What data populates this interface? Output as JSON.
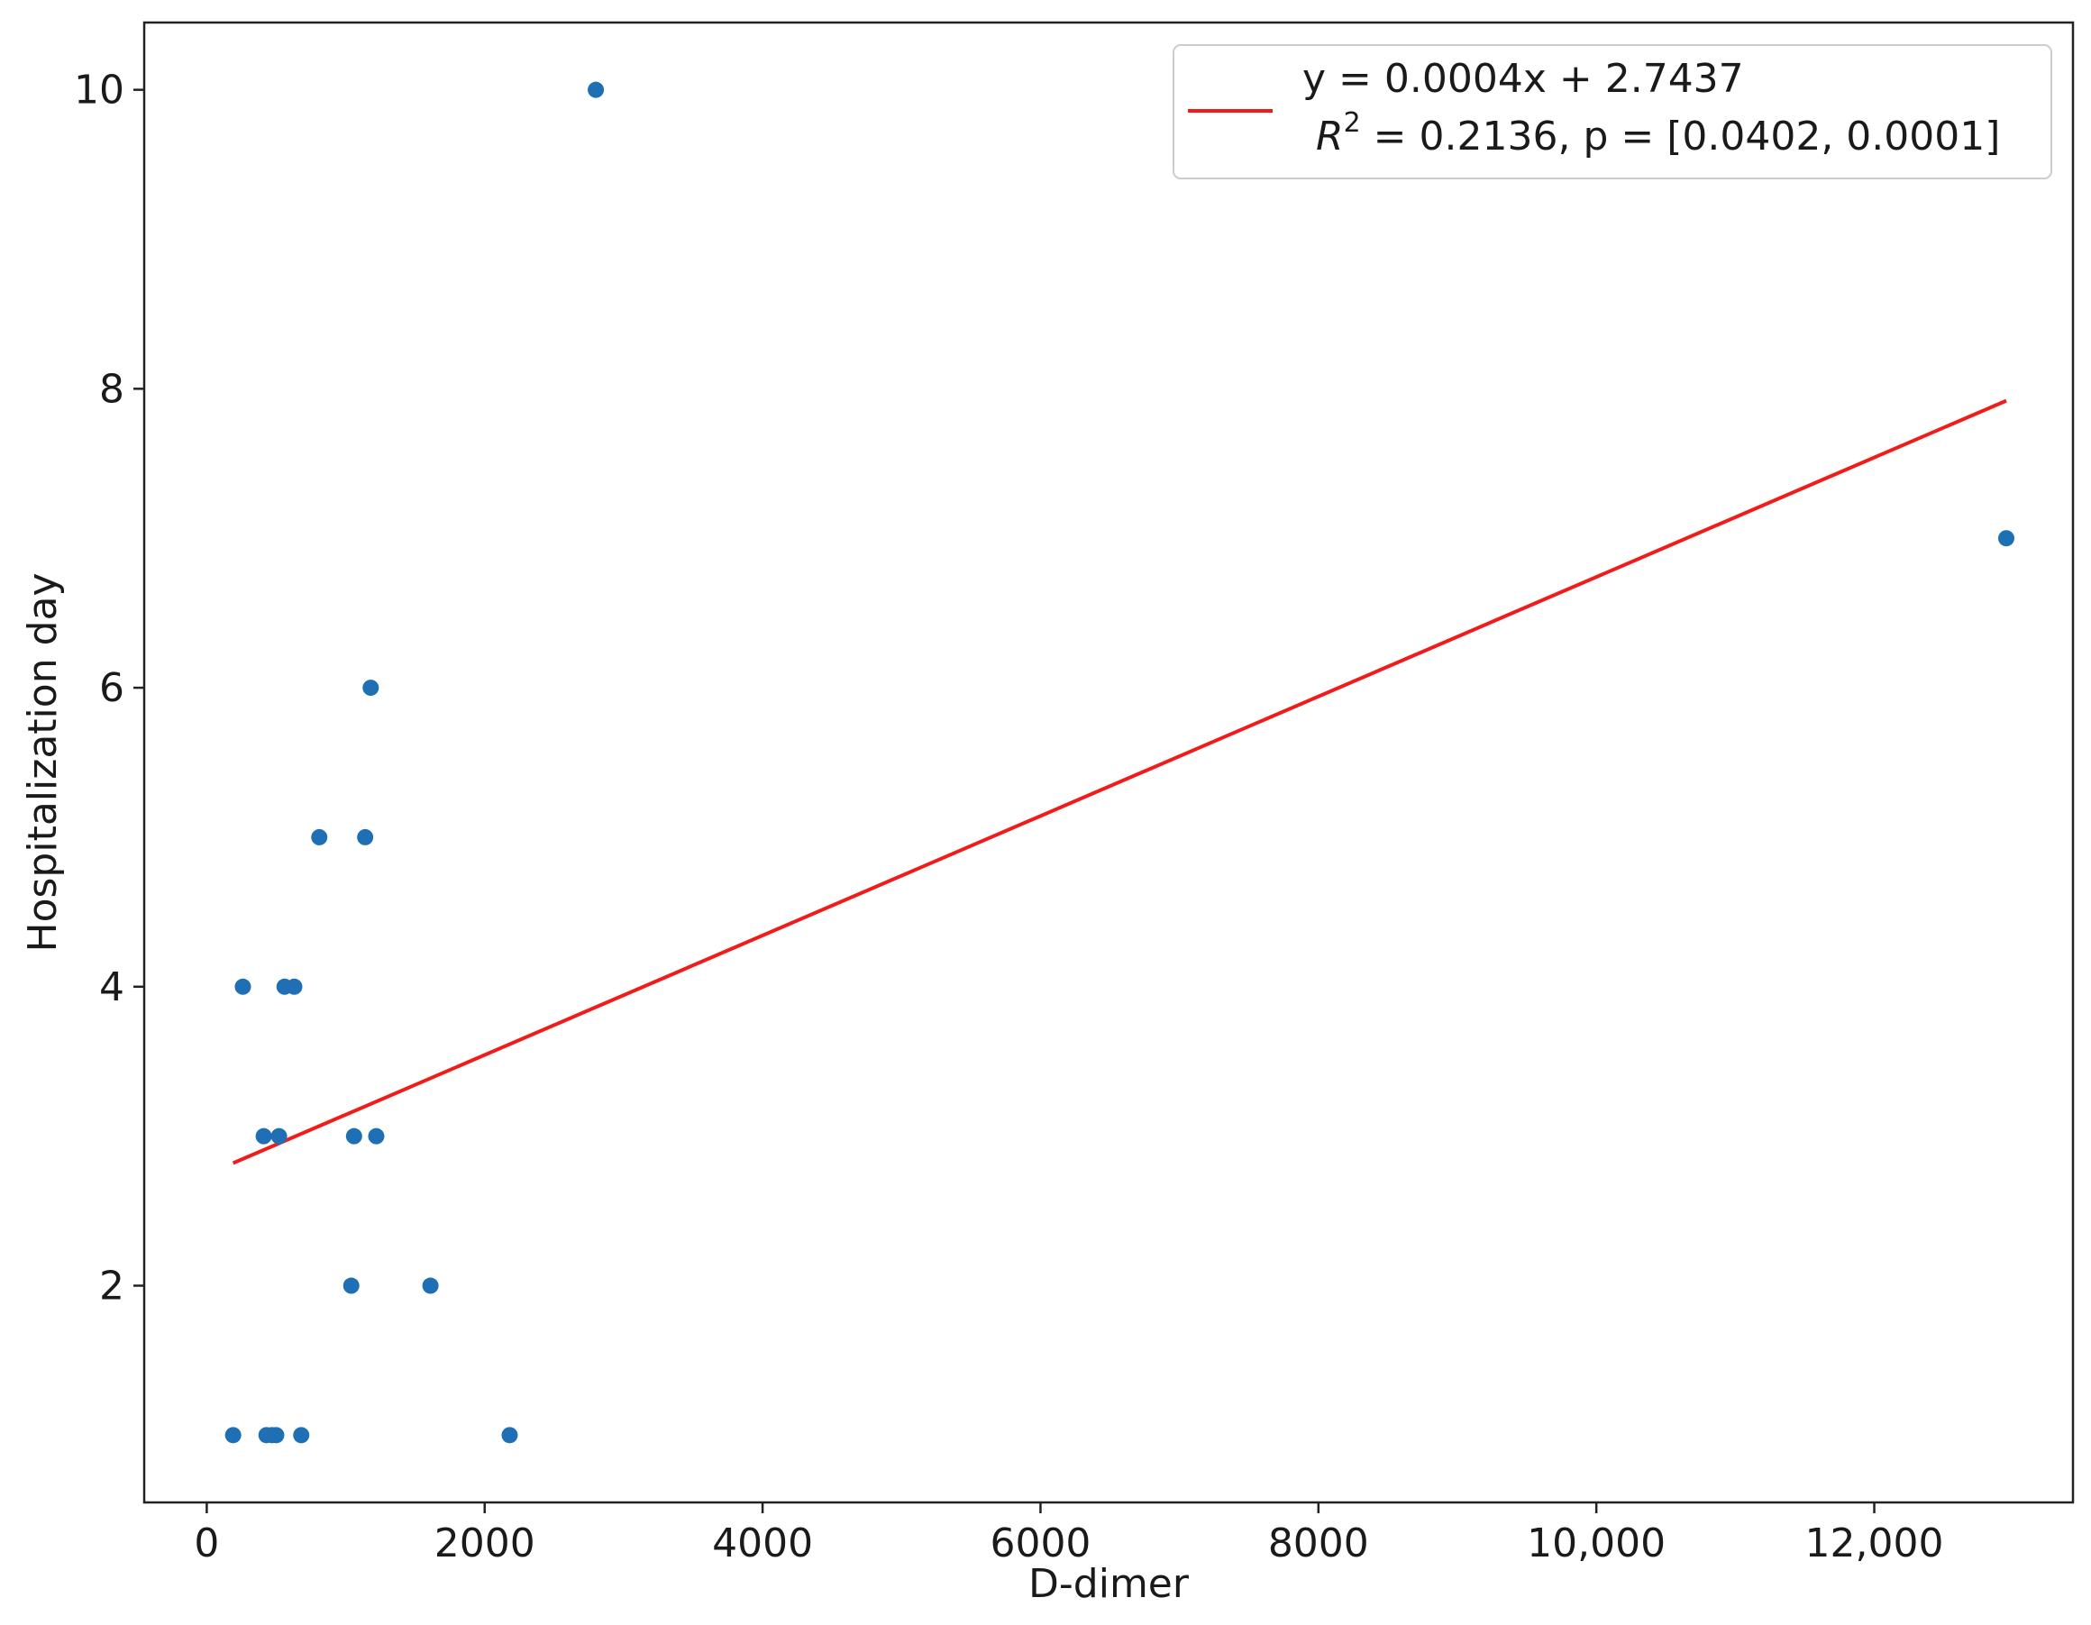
{
  "chart_data": {
    "type": "scatter",
    "title": "",
    "xlabel": "D-dimer",
    "ylabel": "Hospitalization day",
    "xlim": [
      -450,
      13430
    ],
    "ylim": [
      0.55,
      10.45
    ],
    "xticks": [
      0,
      2000,
      4000,
      6000,
      8000,
      10000,
      12000
    ],
    "xtick_labels": [
      "0",
      "2000",
      "4000",
      "6000",
      "8000",
      "10,000",
      "12,000"
    ],
    "yticks": [
      2,
      4,
      6,
      8,
      10
    ],
    "ytick_labels": [
      "2",
      "4",
      "6",
      "8",
      "10"
    ],
    "grid": false,
    "series": [
      {
        "type": "scatter",
        "color": "#1f6fb4",
        "points": [
          {
            "x": 2800,
            "y": 10
          },
          {
            "x": 12950,
            "y": 7
          },
          {
            "x": 1180,
            "y": 6
          },
          {
            "x": 810,
            "y": 5
          },
          {
            "x": 1140,
            "y": 5
          },
          {
            "x": 260,
            "y": 4
          },
          {
            "x": 560,
            "y": 4
          },
          {
            "x": 630,
            "y": 4
          },
          {
            "x": 410,
            "y": 3
          },
          {
            "x": 520,
            "y": 3
          },
          {
            "x": 1060,
            "y": 3
          },
          {
            "x": 1220,
            "y": 3
          },
          {
            "x": 1040,
            "y": 2
          },
          {
            "x": 1610,
            "y": 2
          },
          {
            "x": 190,
            "y": 1
          },
          {
            "x": 430,
            "y": 1
          },
          {
            "x": 470,
            "y": 1
          },
          {
            "x": 500,
            "y": 1
          },
          {
            "x": 680,
            "y": 1
          },
          {
            "x": 2180,
            "y": 1
          }
        ]
      },
      {
        "type": "line",
        "name": "y = 0.0004x + 2.7437",
        "color": "#f01c1c",
        "points": [
          {
            "x": 190,
            "y": 2.82
          },
          {
            "x": 12950,
            "y": 7.92
          }
        ]
      }
    ],
    "legend": {
      "position": "top-right",
      "line1": "y = 0.0004x + 2.7437",
      "r_symbol": "R",
      "r_exponent": "2",
      "line2_rest": " = 0.2136, p = [0.0402, 0.0001]"
    }
  }
}
